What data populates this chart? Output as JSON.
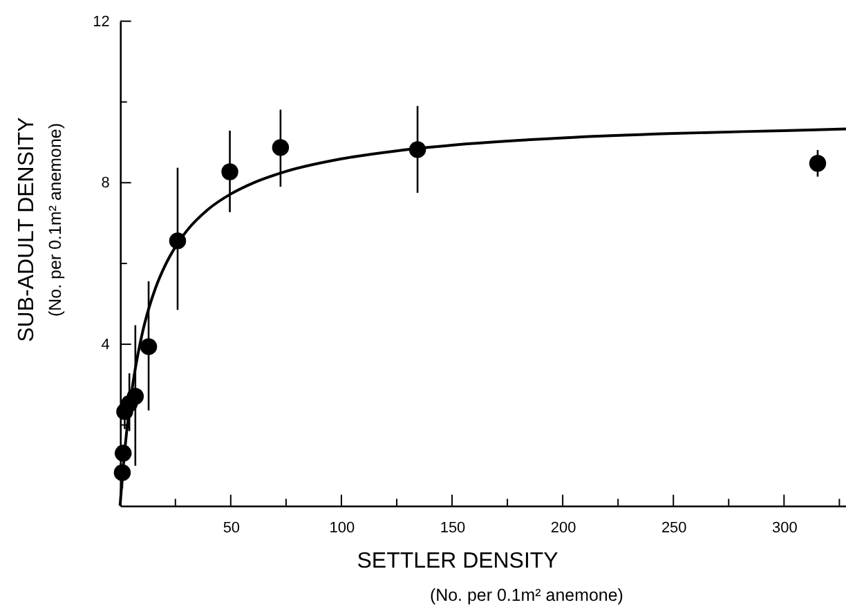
{
  "chart_data": {
    "type": "scatter",
    "xlabel": "SETTLER DENSITY\n(No. per 0.1m² anemone)",
    "ylabel": "SUB-ADULT DENSITY\n(No. per 0.1m² anemone)",
    "xlim": [
      0,
      328
    ],
    "ylim": [
      0,
      12
    ],
    "xticks": [
      {
        "value": 25,
        "label": null
      },
      50,
      {
        "value": 75,
        "label": null
      },
      100,
      {
        "value": 125,
        "label": null
      },
      150,
      {
        "value": 175,
        "label": null
      },
      200,
      {
        "value": 225,
        "label": null
      },
      250,
      {
        "value": 275,
        "label": null
      },
      300,
      {
        "value": 325,
        "label": null
      }
    ],
    "yticks": [
      {
        "value": 2,
        "label": null
      },
      4,
      {
        "value": 6,
        "label": null
      },
      8,
      {
        "value": 10,
        "label": null
      },
      12
    ],
    "grid": false,
    "marker": "circle",
    "series": [
      {
        "color": "#000000",
        "x": [
          1.0,
          1.4,
          2.1,
          4.2,
          6.9,
          12.9,
          26,
          49.6,
          72.5,
          134.4,
          315.2
        ],
        "values": [
          0.82,
          1.3,
          2.33,
          2.53,
          2.71,
          3.94,
          6.56,
          8.27,
          8.87,
          8.82,
          8.48
        ],
        "errors": [
          [
            0.43,
            0.82
          ],
          null,
          [
            1.9,
            2.7
          ],
          [
            1.85,
            3.28
          ],
          [
            0.99,
            4.47
          ],
          [
            2.36,
            5.56
          ],
          [
            4.85,
            8.37
          ],
          [
            7.27,
            9.29
          ],
          [
            7.9,
            9.81
          ],
          [
            7.75,
            9.9
          ],
          [
            8.15,
            8.81
          ]
        ]
      },
      {
        "type": "line",
        "color": "#000000",
        "marker": "none",
        "line_style": "solid",
        "x": [
          0,
          1,
          2,
          4,
          6,
          8,
          10,
          13,
          16,
          20,
          25,
          30,
          40,
          50,
          60,
          75,
          100,
          125,
          150,
          200,
          250,
          300,
          328
        ],
        "values": [
          0,
          0.7,
          1.31,
          2.31,
          3.1,
          3.73,
          4.26,
          4.89,
          5.39,
          5.91,
          6.41,
          6.8,
          7.35,
          7.72,
          7.99,
          8.28,
          8.59,
          8.79,
          8.93,
          9.11,
          9.22,
          9.29,
          9.33
        ]
      }
    ]
  }
}
